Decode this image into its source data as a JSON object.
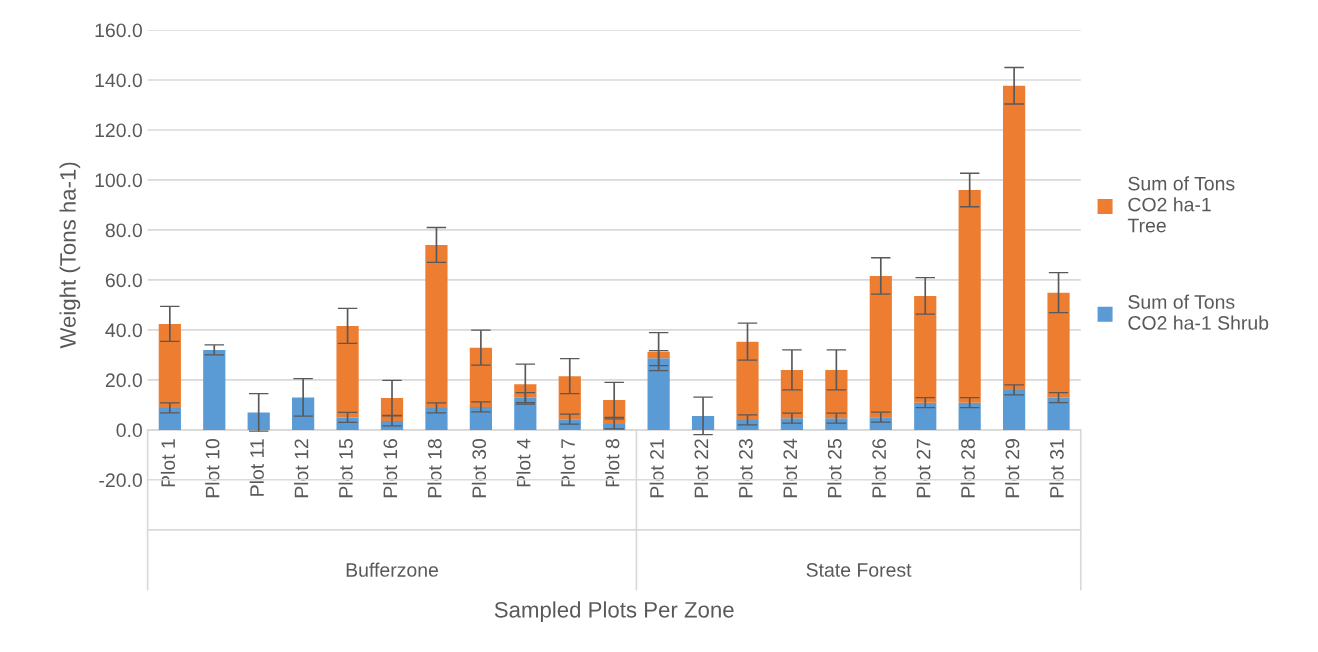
{
  "chart_data": {
    "type": "bar",
    "stacked": true,
    "xlabel": "Sampled Plots Per Zone",
    "ylabel": "Weight (Tons ha-1)",
    "categories": [
      "Plot 1",
      "Plot 10",
      "Plot 11",
      "Plot 12",
      "Plot 15",
      "Plot 16",
      "Plot 18",
      "Plot 30",
      "Plot 4",
      "Plot 7",
      "Plot 8",
      "Plot 21",
      "Plot 22",
      "Plot 23",
      "Plot 24",
      "Plot 25",
      "Plot 26",
      "Plot 27",
      "Plot 28",
      "Plot 29",
      "Plot 31"
    ],
    "series": [
      {
        "name": "Sum of Tons CO2 ha-1 Shrub",
        "color": "#5b9bd5",
        "values": [
          8.8,
          32,
          7,
          13,
          5,
          3.6,
          8.8,
          9.2,
          12.9,
          4.3,
          2.4,
          28.7,
          5.6,
          4,
          4.7,
          4.7,
          5.1,
          10.9,
          10.9,
          16,
          12.9
        ],
        "errors": [
          2,
          2,
          7.5,
          7.5,
          2,
          2,
          2,
          2,
          2,
          2,
          2,
          3,
          7.5,
          2,
          2,
          2,
          2,
          2,
          2,
          2,
          2
        ]
      },
      {
        "name": "Sum of Tons CO2 ha-1   Tree",
        "color": "#ed7d31",
        "values": [
          33.6,
          0,
          0,
          0,
          36.6,
          9.2,
          65.2,
          23.7,
          5.4,
          17.2,
          9.6,
          2.6,
          0,
          31.3,
          19.3,
          19.3,
          56.5,
          42.7,
          85.1,
          121.7,
          42
        ],
        "errors": [
          7,
          null,
          null,
          null,
          7,
          7,
          7,
          7,
          8,
          7,
          7,
          7.6,
          null,
          7.4,
          8,
          8,
          7.3,
          7.3,
          6.7,
          7.3,
          8
        ]
      }
    ],
    "annotations": [
      "Bufferzone",
      "State Forest"
    ],
    "ylim": [
      -20,
      160
    ],
    "yticks": [
      {
        "value": -20,
        "label": "-20.0"
      },
      {
        "value": 0,
        "label": "0.0"
      },
      {
        "value": 20,
        "label": "20.0"
      },
      {
        "value": 40,
        "label": "40.0"
      },
      {
        "value": 60,
        "label": "60.0"
      },
      {
        "value": 80,
        "label": "80.0"
      },
      {
        "value": 100,
        "label": "100.0"
      },
      {
        "value": 120,
        "label": "120.0"
      },
      {
        "value": 140,
        "label": "140.0"
      },
      {
        "value": 160,
        "label": "160.0"
      }
    ],
    "grid": "y",
    "legend": "right"
  }
}
